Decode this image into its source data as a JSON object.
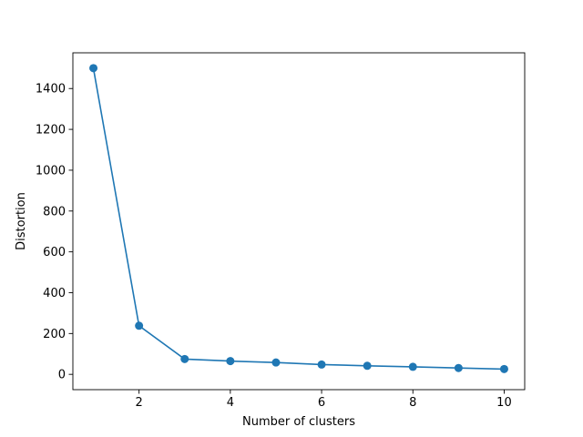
{
  "chart_data": {
    "type": "line",
    "title": "",
    "xlabel": "Number of clusters",
    "ylabel": "Distortion",
    "xlim": [
      0.55,
      10.45
    ],
    "ylim": [
      -75,
      1575
    ],
    "xticks": [
      2,
      4,
      6,
      8,
      10
    ],
    "yticks": [
      0,
      200,
      400,
      600,
      800,
      1000,
      1200,
      1400
    ],
    "grid": false,
    "legend": "none",
    "series": [
      {
        "x": [
          1,
          2,
          3,
          4,
          5,
          6,
          7,
          8,
          9,
          10
        ],
        "values": [
          1500,
          238,
          75,
          65,
          58,
          48,
          42,
          37,
          31,
          26
        ],
        "color": "#1f77b4",
        "marker": "circle"
      }
    ]
  }
}
